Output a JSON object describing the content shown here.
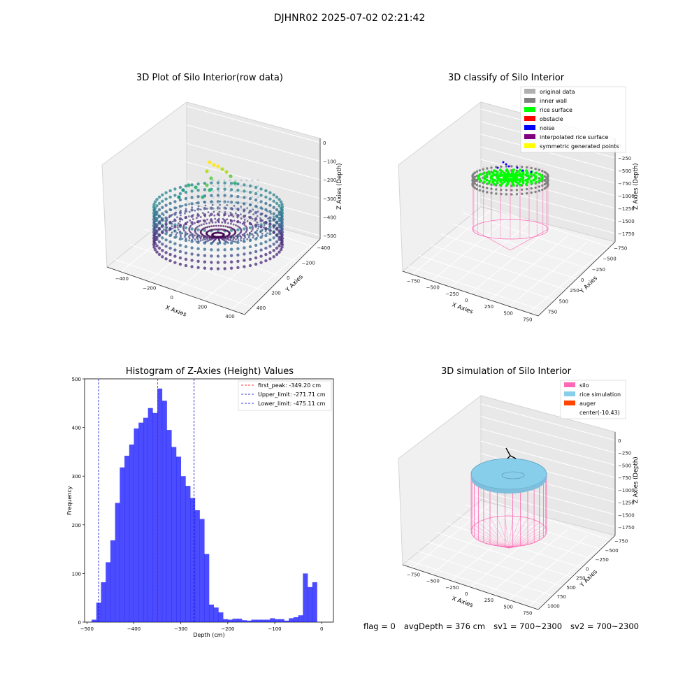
{
  "suptitle": "DJHNR02 2025-07-02 02:21:42",
  "status": {
    "flag": "flag = 0",
    "avg_depth": "avgDepth = 376 cm",
    "sv1": "sv1 = 700~2300",
    "sv2": "sv2 = 700~2300"
  },
  "chart_data": [
    {
      "type": "scatter",
      "title": "3D Plot of Silo Interior(row data)",
      "xlabel": "X Axies",
      "ylabel": "Y Axies",
      "zlabel": "Z Axies (Depth)",
      "x_ticks": [
        "−400",
        "−200",
        "0",
        "200",
        "400"
      ],
      "y_ticks": [
        "−400",
        "−200",
        "0",
        "200",
        "400"
      ],
      "z_ticks": [
        "0",
        "−100",
        "−200",
        "−300",
        "−400",
        "−500"
      ],
      "colormap": "viridis"
    },
    {
      "type": "scatter",
      "title": "3D classify of Silo Interior",
      "xlabel": "X Axies",
      "ylabel": "Y Axies",
      "zlabel": "Z Axies (Depth)",
      "x_ticks": [
        "−750",
        "−500",
        "−250",
        "0",
        "250",
        "500",
        "750"
      ],
      "y_ticks": [
        "−750",
        "−500",
        "−250",
        "0",
        "250",
        "500",
        "750"
      ],
      "z_ticks": [
        "0",
        "−250",
        "−500",
        "−750",
        "−1000",
        "−1250",
        "−1500",
        "−1750"
      ],
      "legend_position": "top-right",
      "legend": [
        {
          "label": "original data",
          "color": "#b0b0b0"
        },
        {
          "label": "inner wall",
          "color": "#808080"
        },
        {
          "label": "rice surface",
          "color": "#00ff00"
        },
        {
          "label": "obstacle",
          "color": "#ff0000"
        },
        {
          "label": "noise",
          "color": "#0000ff"
        },
        {
          "label": "interpolated rice surface",
          "color": "#800080"
        },
        {
          "label": "symmetric generated points",
          "color": "#ffff00"
        }
      ]
    },
    {
      "type": "bar",
      "title": "Histogram of Z-Axies (Height) Values",
      "xlabel": "Depth (cm)",
      "ylabel": "Frequency",
      "xlim": [
        -505,
        25
      ],
      "ylim": [
        0,
        500
      ],
      "x_ticks": [
        "−500",
        "−400",
        "−300",
        "−200",
        "−100",
        "0"
      ],
      "y_ticks": [
        "0",
        "100",
        "200",
        "300",
        "400",
        "500"
      ],
      "bar_color": "#0000ff",
      "bin_width": 10,
      "bin_start": -490,
      "values": [
        5,
        40,
        82,
        123,
        168,
        245,
        318,
        342,
        365,
        398,
        410,
        420,
        440,
        430,
        480,
        455,
        395,
        360,
        340,
        300,
        280,
        255,
        230,
        212,
        140,
        36,
        30,
        20,
        6,
        5,
        7,
        7,
        4,
        3,
        5,
        5,
        5,
        5,
        8,
        6,
        6,
        3,
        8,
        10,
        14,
        100,
        72,
        82
      ],
      "legend_position": "top-right",
      "lines": [
        {
          "label": "first_peak: -349.20 cm",
          "x": -349.2,
          "color": "#ff0000"
        },
        {
          "label": "Upper_limit: -271.71 cm",
          "x": -271.71,
          "color": "#0000cc"
        },
        {
          "label": "Lower_limit: -475.11 cm",
          "x": -475.11,
          "color": "#0000cc"
        }
      ]
    },
    {
      "type": "scatter",
      "title": "3D simulation of Silo Interior",
      "xlabel": "X Axies",
      "ylabel": "Y Axies",
      "zlabel": "Z Axies (Depth)",
      "x_ticks": [
        "−750",
        "−500",
        "−250",
        "0",
        "250",
        "500",
        "750"
      ],
      "y_ticks": [
        "−750",
        "−500",
        "−250",
        "0",
        "250",
        "500",
        "750",
        "1000"
      ],
      "z_ticks": [
        "0",
        "−250",
        "−500",
        "−750",
        "−1000",
        "−1250",
        "−1500",
        "−1750"
      ],
      "legend_position": "top-right",
      "legend": [
        {
          "label": "silo",
          "color": "#ff69b4"
        },
        {
          "label": "rice simulation",
          "color": "#87ceeb"
        },
        {
          "label": "auger",
          "color": "#ff4500"
        },
        {
          "label": "center(-10,43)",
          "color": "#ffffff"
        }
      ]
    }
  ]
}
